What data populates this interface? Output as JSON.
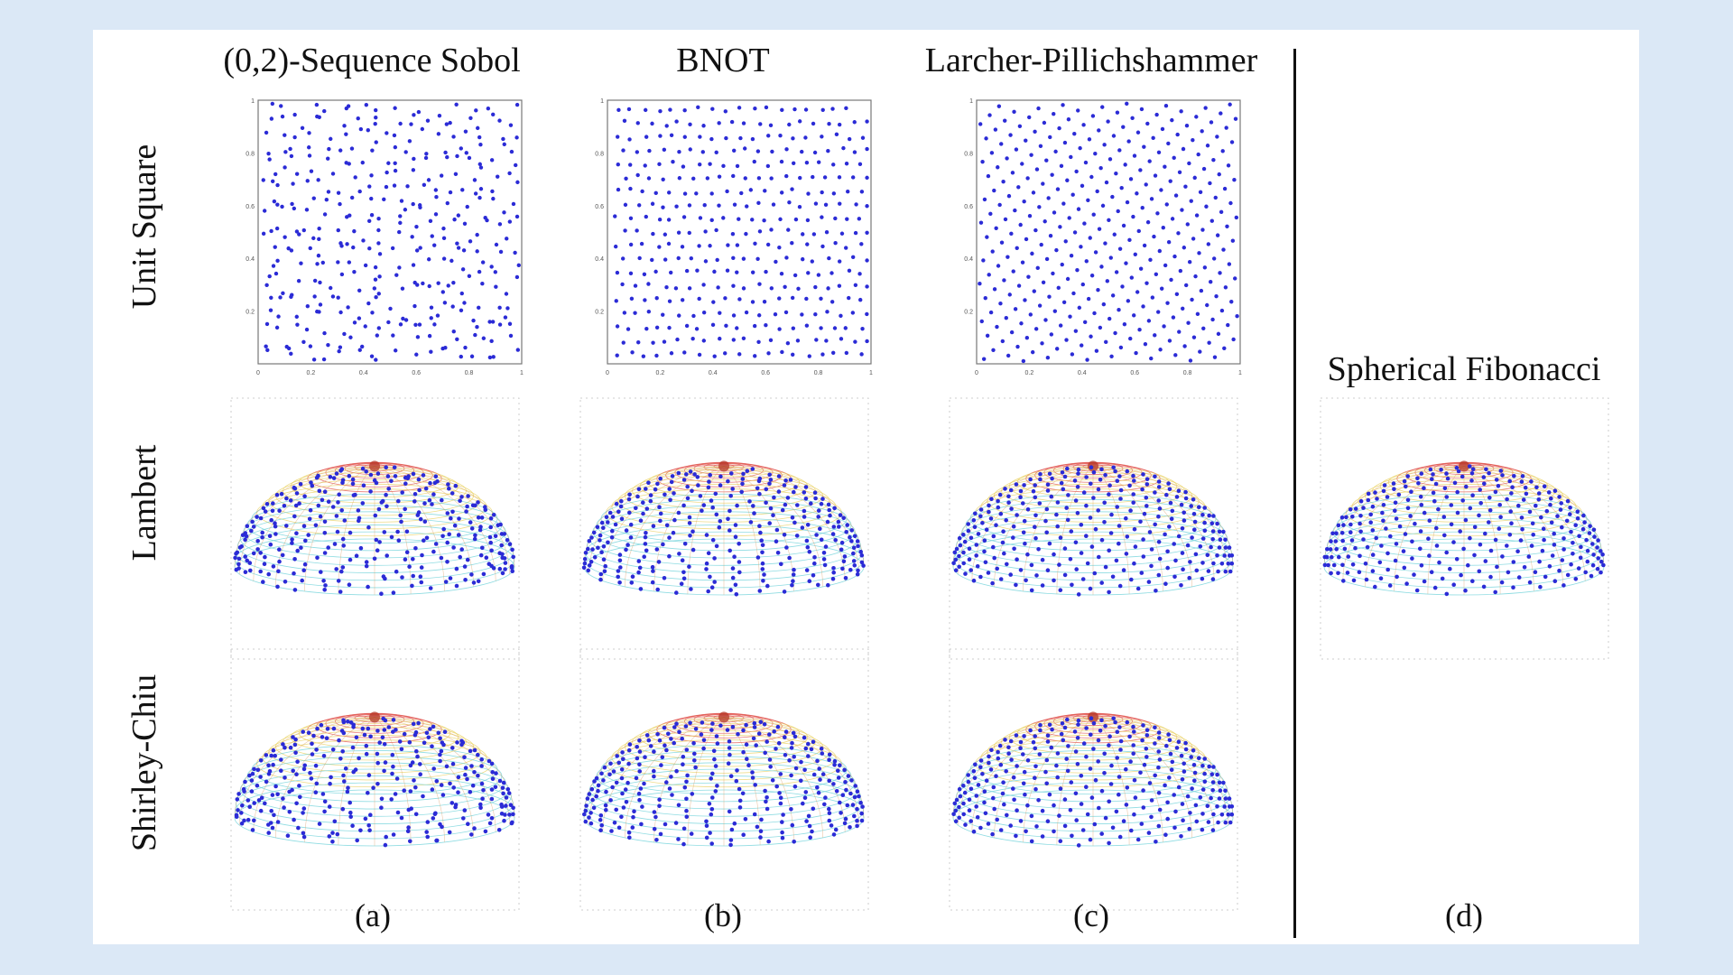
{
  "columns": [
    {
      "title": "(0,2)-Sequence Sobol",
      "caption": "(a)"
    },
    {
      "title": "BNOT",
      "caption": "(b)"
    },
    {
      "title": "Larcher-Pillichshammer",
      "caption": "(c)"
    },
    {
      "title": "Spherical Fibonacci",
      "caption": "(d)"
    }
  ],
  "rows": [
    {
      "label": "Unit Square"
    },
    {
      "label": "Lambert"
    },
    {
      "label": "Shirley-Chiu"
    }
  ],
  "square_axis": {
    "x_ticks": [
      "0",
      "0.2",
      "0.4",
      "0.6",
      "0.8",
      "1"
    ],
    "y_ticks": [
      "0.2",
      "0.4",
      "0.6",
      "0.8",
      "1"
    ]
  },
  "colors": {
    "background": "#dbe8f6",
    "figure": "#ffffff",
    "points": "#2b2bd6",
    "mesh_top": "#e0504a",
    "mesh_mid": "#e8d060",
    "mesh_low": "#6ad0d8",
    "mesh_bottom": "#4a5ae8"
  }
}
